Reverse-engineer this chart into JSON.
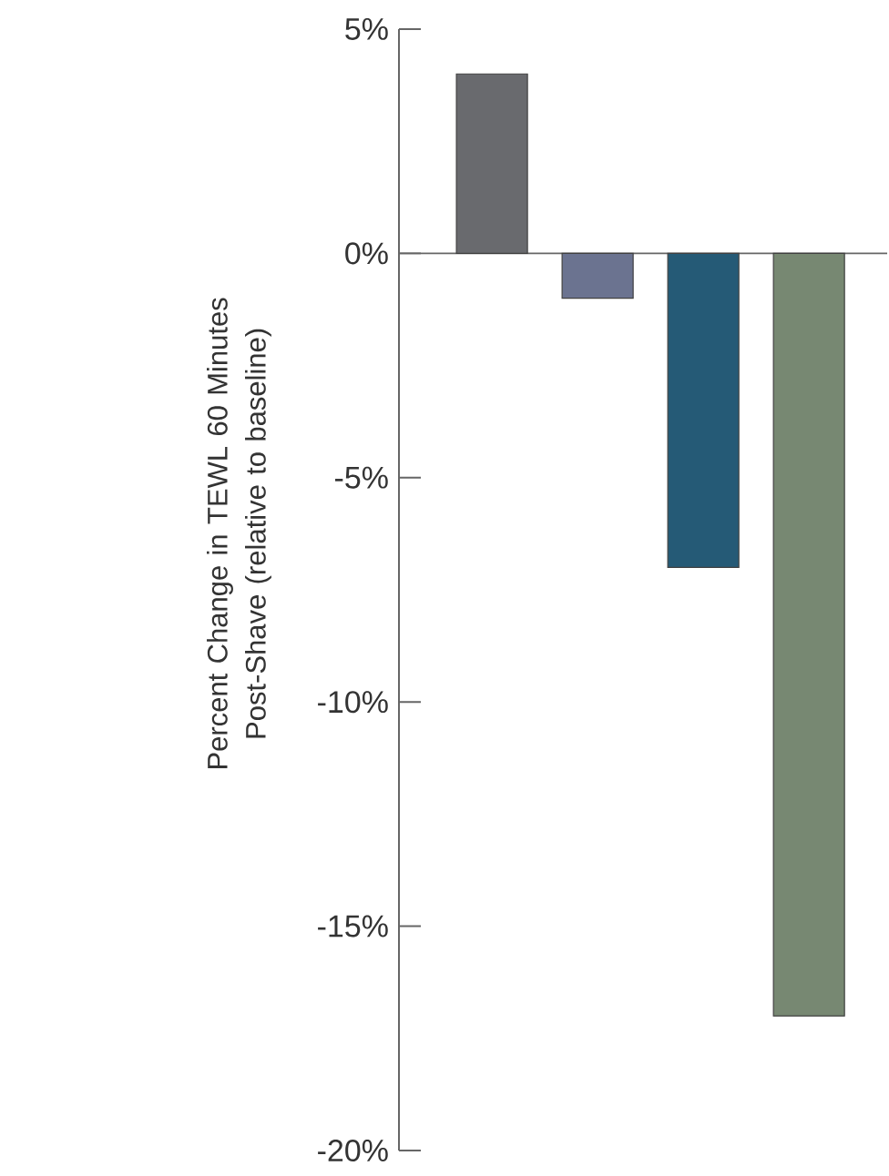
{
  "chart_data": {
    "type": "bar",
    "ylabel": "Percent Change in TEWL 60 Minutes Post-Shave (relative to baseline)",
    "categories": [
      null,
      null,
      null,
      null
    ],
    "values": [
      4,
      -1,
      -7,
      -17
    ],
    "colors": [
      "#696a6e",
      "#6b7390",
      "#255a76",
      "#778872"
    ],
    "ylim": [
      -20,
      5
    ],
    "yticks": [
      {
        "value": 5,
        "label": "5%"
      },
      {
        "value": 0,
        "label": "0%"
      },
      {
        "value": -5,
        "label": "-5%"
      },
      {
        "value": -10,
        "label": "-10%"
      },
      {
        "value": -15,
        "label": "-15%"
      },
      {
        "value": -20,
        "label": "-20%"
      }
    ]
  }
}
